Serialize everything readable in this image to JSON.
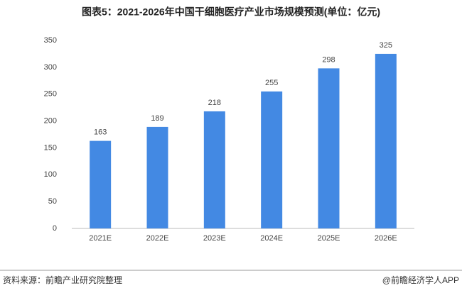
{
  "chart_data": {
    "type": "bar",
    "title": "图表5：2021-2026年中国干细胞医疗产业市场规模预测(单位：亿元)",
    "categories": [
      "2021E",
      "2022E",
      "2023E",
      "2024E",
      "2025E",
      "2026E"
    ],
    "values": [
      163,
      189,
      218,
      255,
      298,
      325
    ],
    "color": "#4389e3",
    "ylim": [
      0,
      350
    ],
    "yticks": [
      0,
      50,
      100,
      150,
      200,
      250,
      300,
      350
    ],
    "grid": false,
    "source": "资料来源：前瞻产业研究院整理",
    "credit": "@前瞻经济学人APP"
  }
}
